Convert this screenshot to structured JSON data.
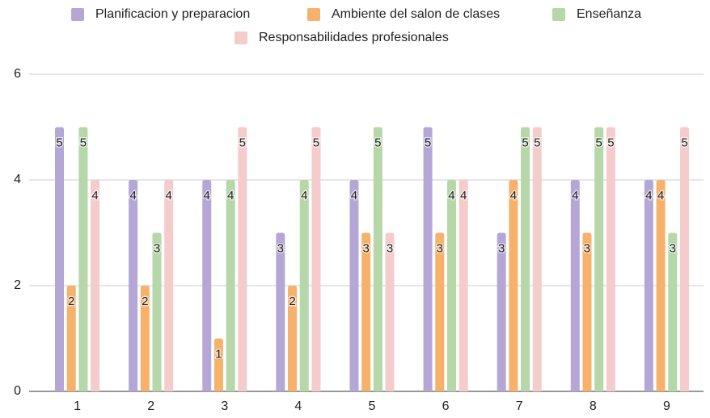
{
  "chart_data": {
    "type": "bar",
    "categories": [
      "1",
      "2",
      "3",
      "4",
      "5",
      "6",
      "7",
      "8",
      "9"
    ],
    "series": [
      {
        "name": "Planificacion y preparacion",
        "color": "#b4a7d6",
        "values": [
          5,
          4,
          4,
          3,
          4,
          5,
          3,
          4,
          4
        ]
      },
      {
        "name": "Ambiente del salon de clases",
        "color": "#f6b26b",
        "values": [
          2,
          2,
          1,
          2,
          3,
          3,
          4,
          3,
          4
        ]
      },
      {
        "name": "Enseñanza",
        "color": "#b6d7a8",
        "values": [
          5,
          3,
          4,
          4,
          5,
          4,
          5,
          5,
          3
        ]
      },
      {
        "name": "Responsabilidades profesionales",
        "color": "#f4cccc",
        "values": [
          4,
          4,
          5,
          5,
          3,
          4,
          5,
          5,
          5
        ]
      }
    ],
    "ylim": [
      0,
      6
    ],
    "yticks": [
      0,
      2,
      4,
      6
    ],
    "grid": true,
    "legend": "top",
    "data_labels": true
  }
}
